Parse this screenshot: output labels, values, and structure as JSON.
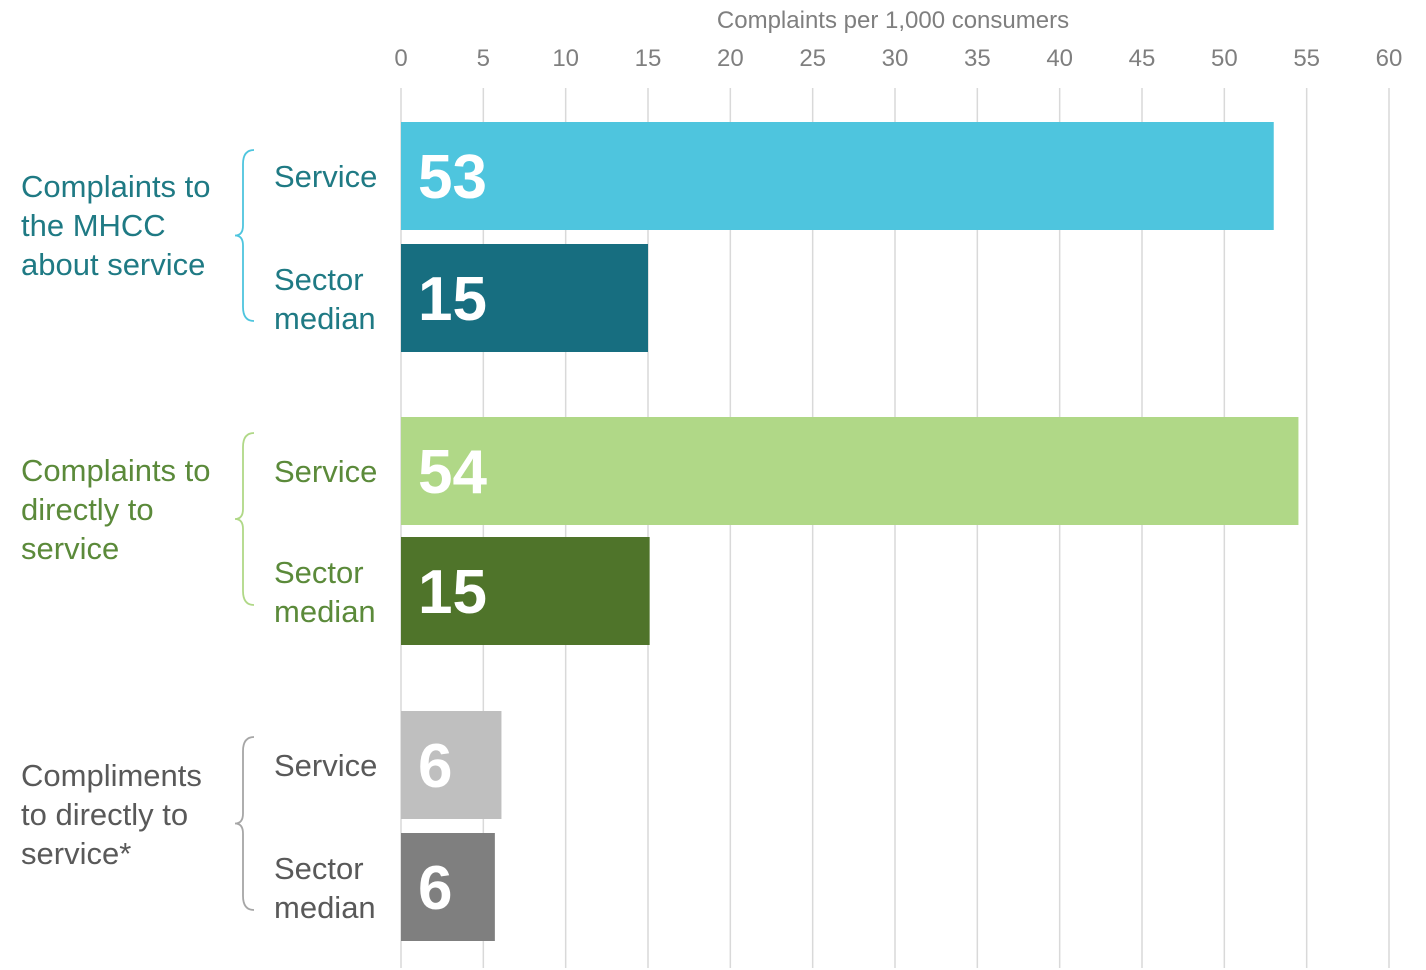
{
  "chart_data": {
    "type": "bar",
    "orientation": "horizontal",
    "title": "",
    "xlabel": "Complaints per 1,000 consumers",
    "xlim": [
      0,
      60
    ],
    "x_ticks": [
      "0",
      "5",
      "10",
      "15",
      "20",
      "25",
      "30",
      "35",
      "40",
      "45",
      "50",
      "55",
      "60"
    ],
    "grid": true,
    "axis_position": "top",
    "groups": [
      {
        "label_lines": [
          "Complaints to",
          "the MHCC",
          "about service"
        ],
        "color": "#1f7a84",
        "bars": [
          {
            "label_lines": [
              "Service"
            ],
            "value": 53,
            "value_label": "53",
            "color": "#4ec5de"
          },
          {
            "label_lines": [
              "Sector",
              "median"
            ],
            "value": 15,
            "value_label": "15",
            "color": "#176e80"
          }
        ]
      },
      {
        "label_lines": [
          "Complaints to",
          "directly to",
          "service"
        ],
        "color": "#5b8a3a",
        "bars": [
          {
            "label_lines": [
              "Service"
            ],
            "value": 54.5,
            "value_label": "54",
            "color": "#b0d887"
          },
          {
            "label_lines": [
              "Sector",
              "median"
            ],
            "value": 15.1,
            "value_label": "15",
            "color": "#4f742a"
          }
        ]
      },
      {
        "label_lines": [
          "Compliments",
          "to directly to",
          "service*"
        ],
        "color": "#595959",
        "bars": [
          {
            "label_lines": [
              "Service"
            ],
            "value": 6.1,
            "value_label": "6",
            "color": "#bfbfbf"
          },
          {
            "label_lines": [
              "Sector",
              "median"
            ],
            "value": 5.7,
            "value_label": "6",
            "color": "#7f7f7f"
          }
        ]
      }
    ]
  }
}
